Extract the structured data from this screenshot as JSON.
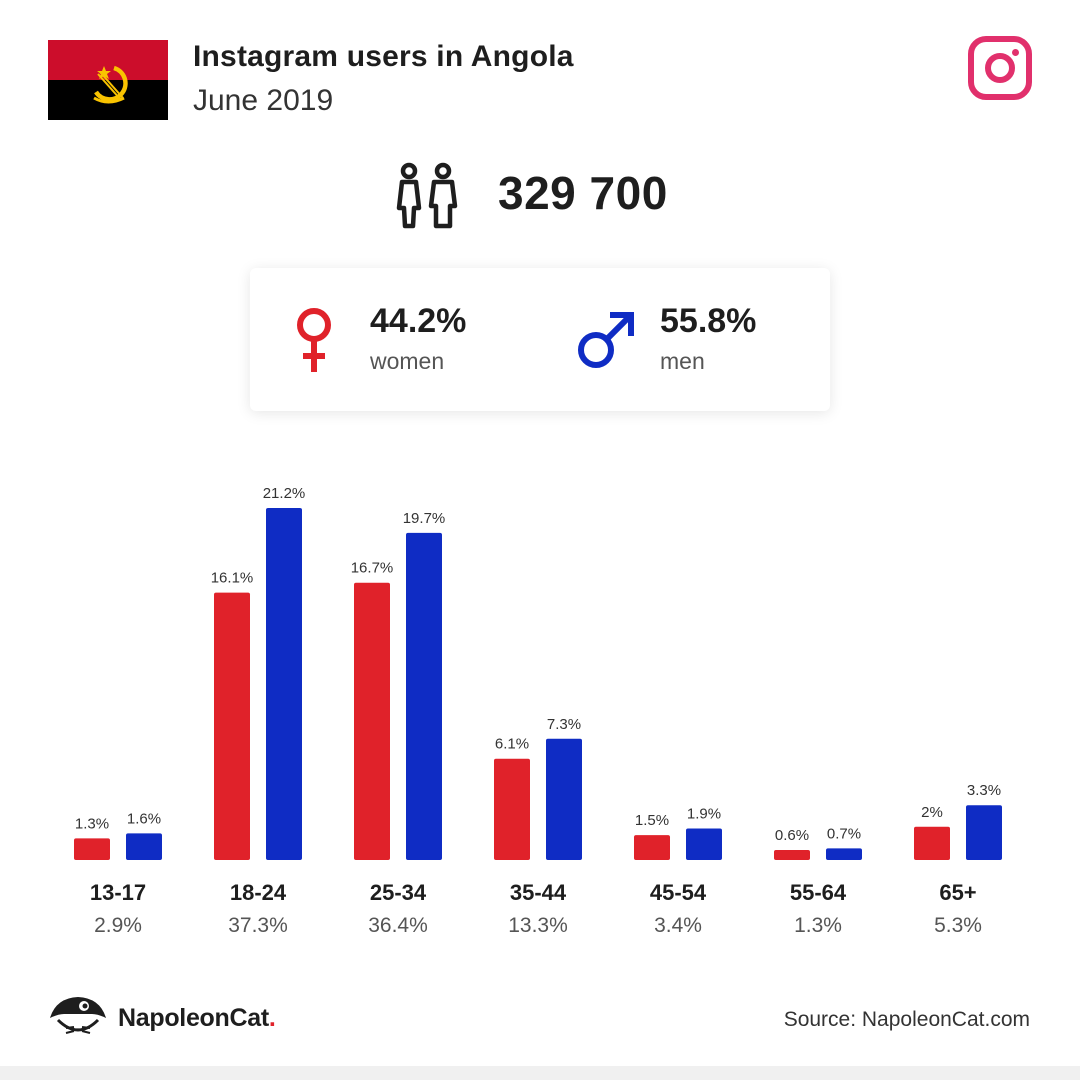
{
  "header": {
    "title": "Instagram users in Angola",
    "subtitle": "June 2019"
  },
  "total_users": "329 700",
  "gender": {
    "women_pct": "44.2%",
    "women_label": "women",
    "men_pct": "55.8%",
    "men_label": "men"
  },
  "colors": {
    "women": "#e0222a",
    "men": "#0f2cc4",
    "instagram": "#e1306c"
  },
  "chart_data": {
    "type": "bar",
    "categories": [
      "13-17",
      "18-24",
      "25-34",
      "35-44",
      "45-54",
      "55-64",
      "65+"
    ],
    "category_totals": [
      "2.9%",
      "37.3%",
      "36.4%",
      "13.3%",
      "3.4%",
      "1.3%",
      "5.3%"
    ],
    "series": [
      {
        "values": [
          1.3,
          16.1,
          16.7,
          6.1,
          1.5,
          0.6,
          2
        ],
        "labels": [
          "1.3%",
          "16.1%",
          "16.7%",
          "6.1%",
          "1.5%",
          "0.6%",
          "2%"
        ]
      },
      {
        "values": [
          1.6,
          21.2,
          19.7,
          7.3,
          1.9,
          0.7,
          3.3
        ],
        "labels": [
          "1.6%",
          "21.2%",
          "19.7%",
          "7.3%",
          "1.9%",
          "0.7%",
          "3.3%"
        ]
      }
    ],
    "ylim": [
      0,
      21.2
    ]
  },
  "footer": {
    "brand": "NapoleonCat",
    "brand_dot": ".",
    "source": "Source: NapoleonCat.com"
  },
  "icons": [
    "angola-flag-icon",
    "instagram-icon",
    "people-icon",
    "female-symbol-icon",
    "male-symbol-icon",
    "napoleoncat-logo-icon"
  ]
}
